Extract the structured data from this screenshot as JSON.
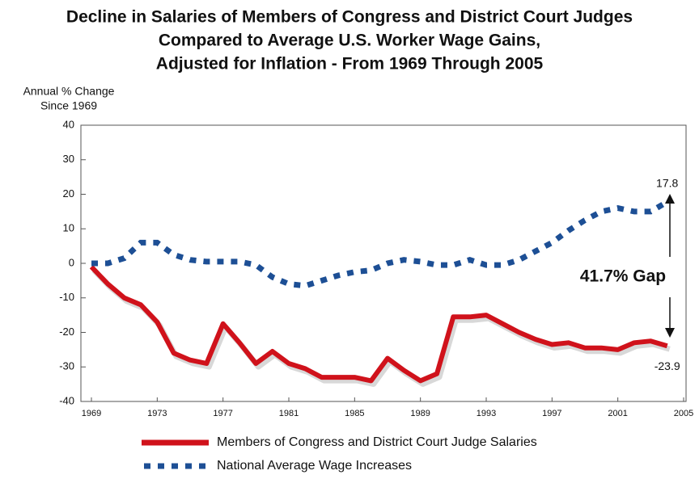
{
  "chart_data": {
    "type": "line",
    "title": [
      "Decline in Salaries of Members of Congress and District Court Judges",
      "Compared to Average U.S. Worker Wage Gains,",
      "Adjusted for Inflation - From 1969 Through 2005"
    ],
    "y_label": [
      "Annual % Change",
      "Since 1969"
    ],
    "annotation": "41.7% Gap",
    "x": [
      1969,
      1970,
      1971,
      1972,
      1973,
      1974,
      1975,
      1976,
      1977,
      1978,
      1979,
      1980,
      1981,
      1982,
      1983,
      1984,
      1985,
      1986,
      1987,
      1988,
      1989,
      1990,
      1991,
      1992,
      1993,
      1994,
      1995,
      1996,
      1997,
      1998,
      1999,
      2000,
      2001,
      2002,
      2003,
      2004
    ],
    "series": [
      {
        "name": "Members of Congress and District Court Judge Salaries",
        "color": "#d0121b",
        "style": "solid",
        "values": [
          -1,
          -6,
          -10,
          -12,
          -17,
          -26,
          -28,
          -29,
          -17.5,
          -23,
          -29,
          -25.5,
          -29,
          -30.5,
          -33,
          -33,
          -33,
          -34,
          -27.5,
          -31,
          -34,
          -32,
          -15.5,
          -15.5,
          -15,
          -17.5,
          -20,
          -22,
          -23.5,
          -23,
          -24.5,
          -24.5,
          -25,
          -23,
          -22.5,
          -23.9
        ]
      },
      {
        "name": "National Average Wage Increases",
        "color": "#1d4f95",
        "style": "dotted",
        "values": [
          0,
          0,
          1.5,
          6,
          6,
          2.5,
          1,
          0.5,
          0.5,
          0.5,
          -0.5,
          -4,
          -6,
          -6.5,
          -5,
          -3.5,
          -2.5,
          -2,
          0,
          1,
          0.5,
          -0.5,
          -0.5,
          1,
          -0.5,
          -0.5,
          1,
          3.5,
          6,
          9.5,
          12.5,
          15,
          16,
          15,
          15,
          17.8
        ]
      }
    ],
    "xlim": [
      1969,
      2005
    ],
    "xticks": [
      1969,
      1973,
      1977,
      1981,
      1985,
      1989,
      1993,
      1997,
      2001,
      2005
    ],
    "ylim": [
      -40,
      40
    ],
    "yticks": [
      -40,
      -30,
      -20,
      -10,
      0,
      10,
      20,
      30,
      40
    ]
  }
}
